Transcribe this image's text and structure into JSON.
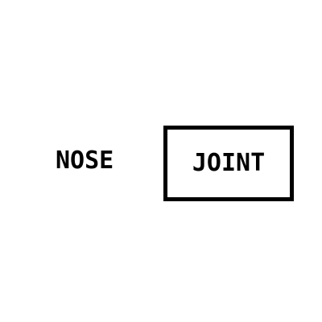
{
  "words": {
    "left": "NOSE",
    "boxed": "JOINT"
  },
  "colors": {
    "background": "#ffffff",
    "ink": "#000000"
  }
}
